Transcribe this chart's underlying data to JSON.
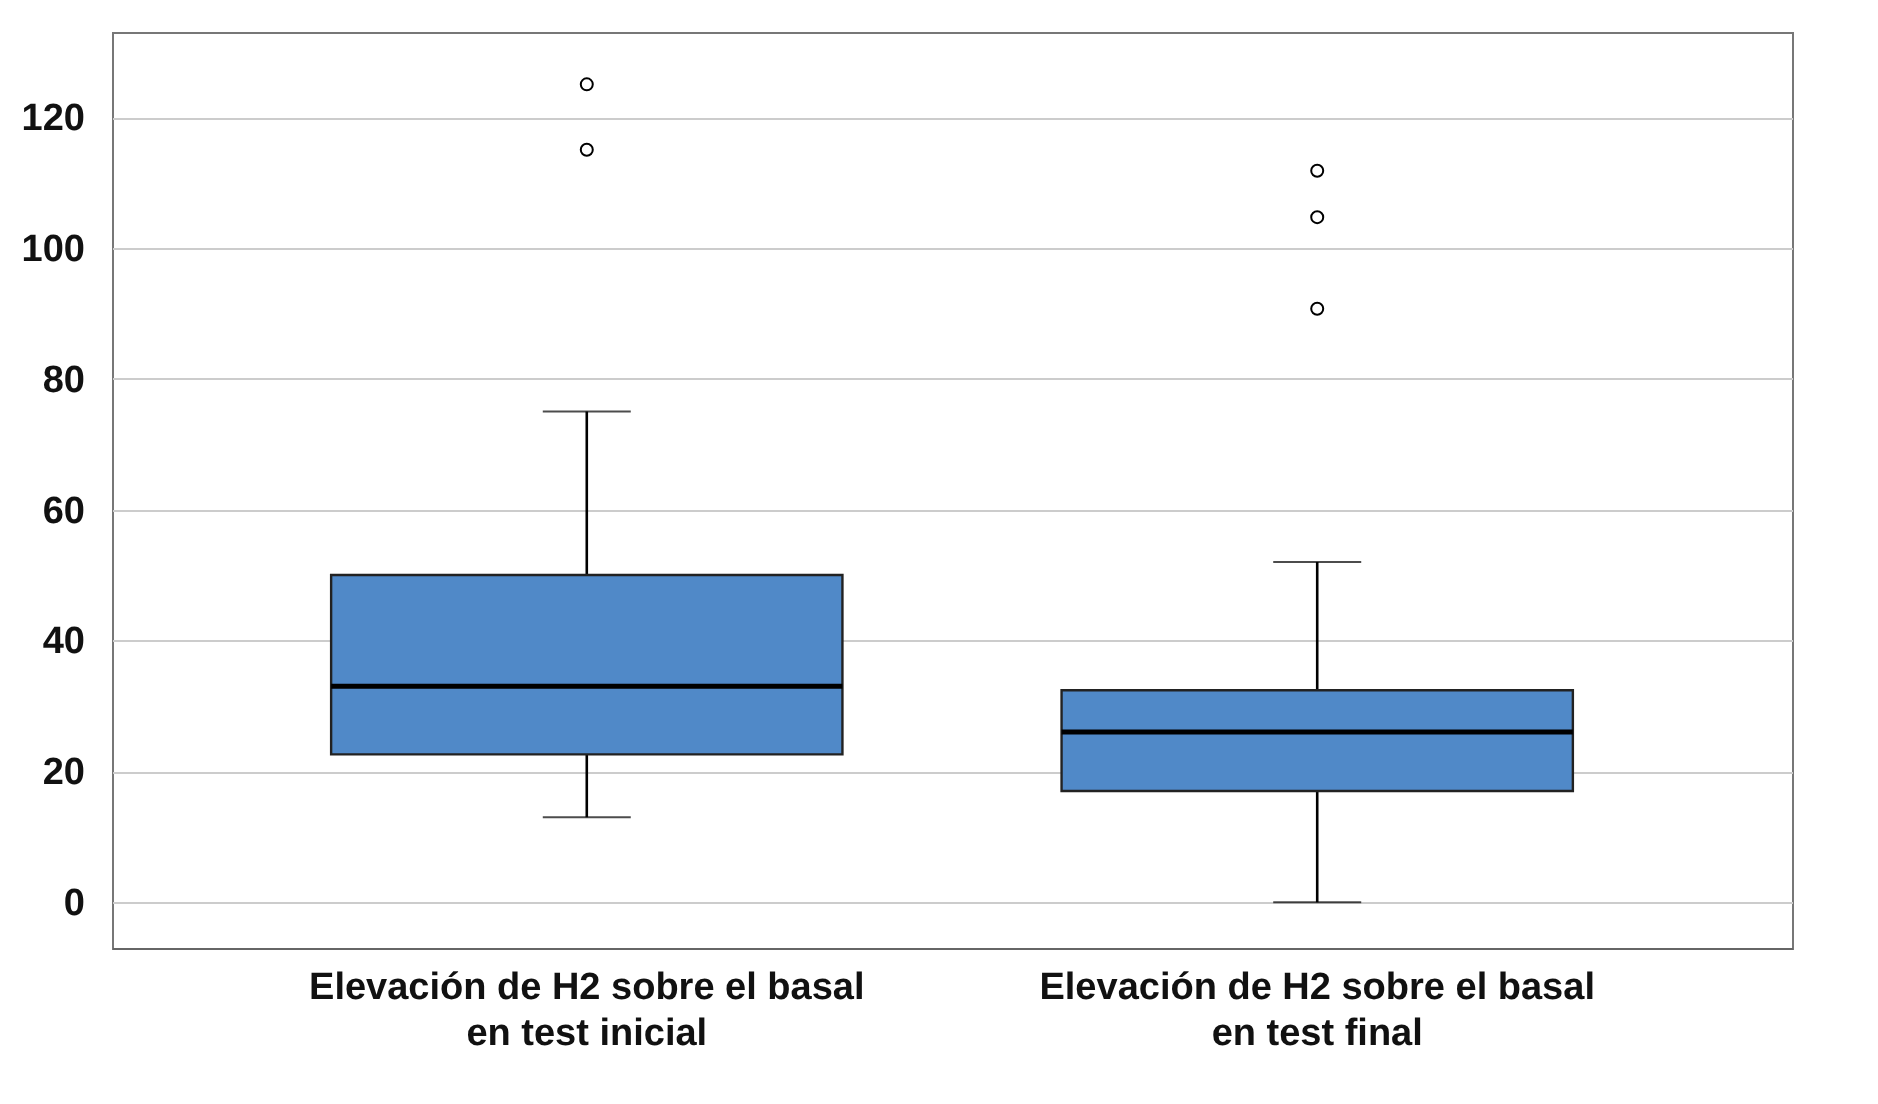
{
  "chart_data": {
    "type": "box",
    "categories": [
      "Elevación de H2 sobre el basal en test inicial",
      "Elevación de H2 sobre el basal en test final"
    ],
    "boxes": [
      {
        "low": 13,
        "q1": 22.6,
        "median": 33,
        "q3": 50,
        "high": 75,
        "outliers": [
          115,
          125
        ]
      },
      {
        "low": 0,
        "q1": 17,
        "median": 26,
        "q3": 32.4,
        "high": 52,
        "outliers": [
          90.7,
          104.7,
          111.8
        ]
      }
    ],
    "color": "#5089c8",
    "ylim": [
      -7,
      133
    ],
    "yticks": [
      0,
      20,
      40,
      60,
      80,
      100,
      120
    ],
    "grid": "y",
    "marker": "circle"
  }
}
